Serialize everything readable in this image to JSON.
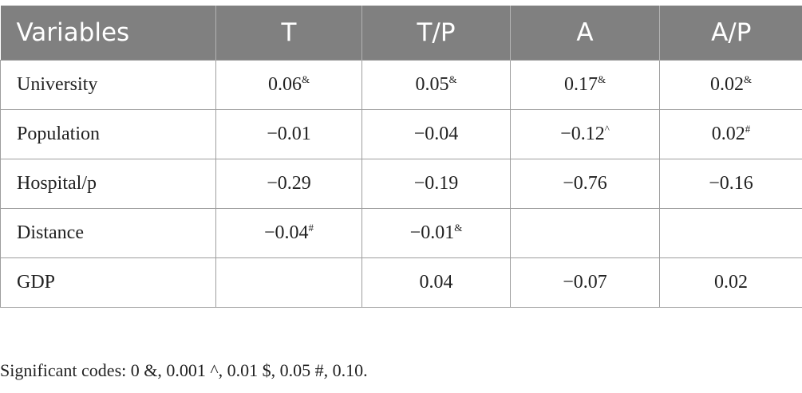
{
  "table": {
    "headers": [
      "Variables",
      "T",
      "T/P",
      "A",
      "A/P"
    ],
    "rows": [
      {
        "label": "University",
        "cells": [
          {
            "value": "0.06",
            "mark": "&"
          },
          {
            "value": "0.05",
            "mark": "&"
          },
          {
            "value": "0.17",
            "mark": "&"
          },
          {
            "value": "0.02",
            "mark": "&"
          }
        ]
      },
      {
        "label": "Population",
        "cells": [
          {
            "value": "−0.01",
            "mark": ""
          },
          {
            "value": "−0.04",
            "mark": ""
          },
          {
            "value": "−0.12",
            "mark": "^"
          },
          {
            "value": "0.02",
            "mark": "#"
          }
        ]
      },
      {
        "label": "Hospital/p",
        "cells": [
          {
            "value": "−0.29",
            "mark": ""
          },
          {
            "value": "−0.19",
            "mark": ""
          },
          {
            "value": "−0.76",
            "mark": ""
          },
          {
            "value": "−0.16",
            "mark": ""
          }
        ]
      },
      {
        "label": "Distance",
        "cells": [
          {
            "value": "−0.04",
            "mark": "#"
          },
          {
            "value": "−0.01",
            "mark": "&"
          },
          {
            "value": "",
            "mark": ""
          },
          {
            "value": "",
            "mark": ""
          }
        ]
      },
      {
        "label": "GDP",
        "cells": [
          {
            "value": "",
            "mark": ""
          },
          {
            "value": "0.04",
            "mark": ""
          },
          {
            "value": "−0.07",
            "mark": ""
          },
          {
            "value": "0.02",
            "mark": ""
          }
        ]
      }
    ]
  },
  "footnote": "Significant codes: 0 &, 0.001 ^, 0.01 $, 0.05 #, 0.10.",
  "colors": {
    "header_bg": "#808080",
    "header_text": "#ffffff",
    "border": "#9e9e9e",
    "text": "#222222"
  }
}
